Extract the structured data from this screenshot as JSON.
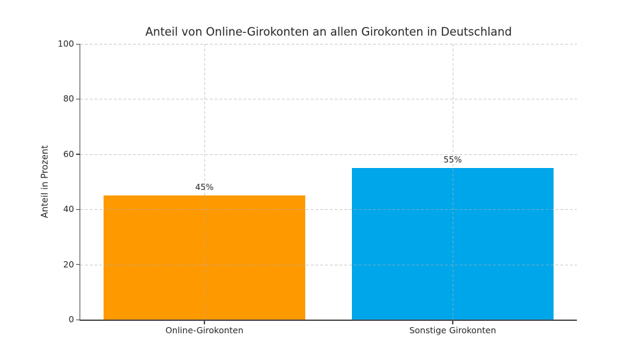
{
  "chart_data": {
    "type": "bar",
    "title": "Anteil von Online-Girokonten an allen Girokonten in Deutschland",
    "xlabel": "",
    "ylabel": "Anteil in Prozent",
    "categories": [
      "Online-Girokonten",
      "Sonstige Girokonten"
    ],
    "values": [
      45,
      55
    ],
    "value_labels": [
      "45%",
      "55%"
    ],
    "bar_colors": [
      "#FF9900",
      "#00A6EA"
    ],
    "ylim": [
      0,
      100
    ],
    "yticks": [
      0,
      20,
      40,
      60,
      80,
      100
    ],
    "grid": {
      "show": true,
      "style": "dashed",
      "axes": "both",
      "color": "#b0b0b0",
      "above_bars": true
    },
    "legend_position": "none",
    "background_color": "#ffffff",
    "spine_color": "#4d4d4d"
  }
}
